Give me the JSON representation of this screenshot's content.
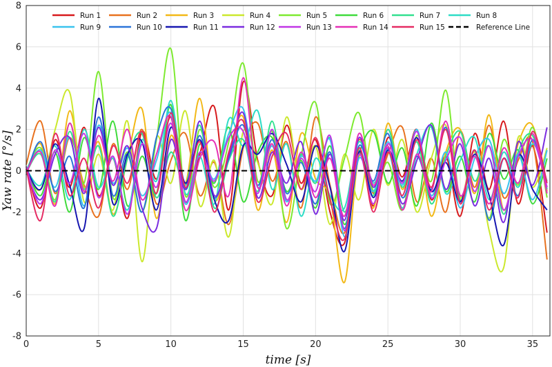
{
  "chart_data": {
    "type": "line",
    "title": "",
    "xlabel": "time [s]",
    "ylabel": "Yaw rate [°/s]",
    "xlim": [
      0,
      36.2
    ],
    "ylim": [
      -8,
      8
    ],
    "x_ticks": [
      0,
      5,
      10,
      15,
      20,
      25,
      30,
      35
    ],
    "y_ticks": [
      -8,
      -6,
      -4,
      -2,
      0,
      2,
      4,
      6,
      8
    ],
    "x_tick_labels": [
      "0",
      "5",
      "10",
      "15",
      "20",
      "25",
      "30",
      "35"
    ],
    "y_tick_labels": [
      "-8",
      "-6",
      "-4",
      "-2",
      "0",
      "2",
      "4",
      "6",
      "8"
    ],
    "grid": true,
    "legend_position": "top",
    "sample_x": [
      0,
      1,
      2,
      3,
      4,
      5,
      6,
      7,
      8,
      9,
      10,
      11,
      12,
      13,
      14,
      15,
      16,
      17,
      18,
      19,
      20,
      21,
      22,
      23,
      24,
      25,
      26,
      27,
      28,
      29,
      30,
      31,
      32,
      33,
      34,
      35,
      36
    ],
    "series": [
      {
        "name": "Run 1",
        "color": "#d7191c",
        "values": [
          0.2,
          -1.8,
          1.5,
          -0.8,
          2.1,
          -1.2,
          0.6,
          -2.3,
          1.9,
          -0.4,
          2.6,
          -1.5,
          0.8,
          3.1,
          -1.9,
          4.3,
          0.5,
          -1.2,
          2.2,
          -0.6,
          1.5,
          -2.0,
          -3.5,
          0.9,
          -1.7,
          1.6,
          -0.3,
          2.0,
          -1.4,
          0.7,
          -2.2,
          1.8,
          -0.9,
          2.4,
          -1.6,
          1.2,
          -3.0
        ]
      },
      {
        "name": "Run 2",
        "color": "#e8711e",
        "values": [
          0.3,
          2.4,
          -1.1,
          1.6,
          -0.7,
          -2.2,
          1.3,
          -0.9,
          2.0,
          -1.6,
          0.5,
          1.8,
          -1.2,
          0.4,
          -2.6,
          1.1,
          2.3,
          -0.5,
          1.4,
          -1.8,
          2.6,
          -0.7,
          -3.0,
          1.5,
          -1.1,
          0.8,
          2.1,
          -1.5,
          0.6,
          -2.0,
          1.9,
          -0.8,
          2.2,
          -1.3,
          0.5,
          1.4,
          -4.3
        ]
      },
      {
        "name": "Run 3",
        "color": "#f2b816",
        "values": [
          -0.2,
          1.3,
          -1.6,
          2.9,
          -0.8,
          1.4,
          -2.1,
          0.6,
          3.0,
          -2.3,
          1.7,
          -0.6,
          3.5,
          -1.4,
          0.8,
          2.6,
          -1.9,
          1.0,
          -2.5,
          1.8,
          -0.4,
          -1.3,
          -5.4,
          0.7,
          -1.8,
          2.3,
          -0.9,
          1.6,
          -2.2,
          0.9,
          2.0,
          -1.1,
          2.7,
          -1.9,
          1.3,
          2.2,
          -1.0
        ]
      },
      {
        "name": "Run 4",
        "color": "#cbe82c",
        "values": [
          0.1,
          -0.9,
          2.0,
          3.8,
          -1.5,
          0.8,
          -1.9,
          2.4,
          -4.4,
          1.6,
          -0.6,
          2.9,
          -1.7,
          0.5,
          -3.2,
          1.9,
          0.4,
          -1.6,
          2.6,
          -0.9,
          1.2,
          -2.6,
          0.8,
          -1.4,
          2.0,
          -0.7,
          1.5,
          -2.0,
          0.6,
          2.2,
          -1.3,
          0.9,
          -2.9,
          -4.7,
          1.6,
          -0.8,
          1.1
        ]
      },
      {
        "name": "Run 5",
        "color": "#7dea2f",
        "values": [
          0.0,
          1.1,
          -1.4,
          2.3,
          -0.6,
          4.8,
          -1.3,
          0.9,
          -2.0,
          1.5,
          5.9,
          -1.2,
          2.0,
          -0.8,
          1.4,
          5.2,
          -0.5,
          1.9,
          -2.8,
          0.7,
          3.3,
          -1.6,
          0.6,
          2.8,
          -1.0,
          0.4,
          -1.9,
          1.7,
          -0.5,
          3.9,
          -1.4,
          1.0,
          -2.3,
          1.5,
          -0.7,
          2.1,
          -1.3
        ]
      },
      {
        "name": "Run 6",
        "color": "#3fdb3b",
        "values": [
          0.2,
          -1.2,
          0.9,
          -2.0,
          1.6,
          -0.9,
          2.4,
          -1.7,
          0.7,
          -1.1,
          3.2,
          -2.4,
          1.3,
          -0.6,
          2.1,
          -1.5,
          0.9,
          1.6,
          -1.0,
          0.5,
          -1.8,
          1.2,
          -2.6,
          0.8,
          1.9,
          -0.6,
          1.1,
          -1.7,
          2.3,
          -1.0,
          0.7,
          -1.5,
          1.8,
          -0.4,
          1.0,
          -1.6,
          0.6
        ]
      },
      {
        "name": "Run 7",
        "color": "#31e08f",
        "values": [
          -0.1,
          0.8,
          -1.5,
          1.9,
          -0.9,
          1.2,
          -2.2,
          0.6,
          1.8,
          -1.3,
          0.9,
          -0.7,
          2.2,
          -1.8,
          0.5,
          1.5,
          -1.0,
          2.4,
          -1.4,
          0.8,
          -0.6,
          1.6,
          -2.0,
          1.0,
          -1.2,
          2.0,
          -0.8,
          1.4,
          -1.6,
          0.7,
          1.9,
          -0.5,
          1.2,
          -2.1,
          0.9,
          1.7,
          -0.9
        ]
      },
      {
        "name": "Run 8",
        "color": "#2ddcc6",
        "values": [
          0.1,
          -0.7,
          1.2,
          -1.4,
          2.0,
          -0.8,
          0.6,
          -1.9,
          1.5,
          -0.5,
          3.4,
          -1.1,
          0.7,
          -1.6,
          2.5,
          1.2,
          2.9,
          -0.9,
          1.3,
          -2.2,
          0.6,
          -1.2,
          -1.8,
          1.4,
          -0.6,
          1.0,
          -1.8,
          0.8,
          2.1,
          -1.1,
          0.5,
          1.6,
          -1.4,
          0.9,
          -0.8,
          1.3,
          -0.5
        ]
      },
      {
        "name": "Run 9",
        "color": "#38c2ee",
        "values": [
          0.0,
          1.0,
          -0.8,
          1.6,
          -1.7,
          2.2,
          -0.6,
          1.1,
          -1.2,
          0.5,
          2.8,
          -1.6,
          0.9,
          -0.4,
          1.8,
          3.0,
          -0.8,
          1.2,
          -1.5,
          0.7,
          -0.5,
          1.5,
          -3.2,
          0.6,
          -1.0,
          1.4,
          -0.7,
          2.0,
          -1.2,
          0.9,
          -1.8,
          0.6,
          1.5,
          -1.1,
          0.8,
          -1.4,
          1.0
        ]
      },
      {
        "name": "Run 10",
        "color": "#2a74d9",
        "values": [
          -0.2,
          1.4,
          -1.0,
          0.7,
          -1.8,
          2.6,
          -1.2,
          0.8,
          -2.0,
          1.6,
          3.0,
          -0.9,
          1.7,
          -1.3,
          0.6,
          2.2,
          -0.7,
          1.5,
          -1.1,
          0.4,
          -1.6,
          0.9,
          -2.8,
          1.2,
          -0.5,
          1.8,
          -1.3,
          0.7,
          -0.9,
          2.1,
          -1.5,
          1.0,
          -2.4,
          0.6,
          -1.2,
          1.5,
          -0.8
        ]
      },
      {
        "name": "Run 11",
        "color": "#1616b0",
        "values": [
          0.1,
          -0.9,
          1.3,
          -0.7,
          -2.8,
          3.5,
          -1.6,
          0.8,
          1.4,
          -1.9,
          2.1,
          -0.6,
          1.5,
          -1.4,
          -2.4,
          1.2,
          0.8,
          1.8,
          0.3,
          -1.5,
          1.2,
          -0.8,
          -3.9,
          0.9,
          -1.3,
          1.0,
          -0.5,
          1.6,
          -1.0,
          0.4,
          -1.5,
          0.8,
          -1.2,
          -3.6,
          0.7,
          -0.9,
          -1.9
        ]
      },
      {
        "name": "Run 12",
        "color": "#7a2be0",
        "values": [
          0.0,
          -1.4,
          0.8,
          1.6,
          -1.1,
          2.1,
          -0.7,
          1.2,
          -1.8,
          -2.8,
          1.5,
          -0.9,
          2.4,
          -1.2,
          0.7,
          2.8,
          -1.3,
          0.9,
          -0.6,
          1.4,
          -2.1,
          0.8,
          -2.4,
          1.6,
          -0.8,
          1.1,
          -1.6,
          0.5,
          2.2,
          -0.9,
          1.3,
          -1.7,
          0.6,
          -2.5,
          1.4,
          -0.7,
          2.1
        ]
      },
      {
        "name": "Run 13",
        "color": "#c035e6",
        "values": [
          0.2,
          -1.6,
          1.0,
          -0.6,
          1.8,
          -1.3,
          0.7,
          -2.1,
          1.3,
          -0.8,
          2.3,
          -1.5,
          0.9,
          -0.5,
          1.6,
          1.9,
          -1.1,
          2.0,
          -1.4,
          0.6,
          -1.0,
          1.7,
          -2.9,
          0.8,
          -1.6,
          1.3,
          -0.6,
          1.9,
          -1.3,
          0.5,
          1.6,
          -1.0,
          1.2,
          -1.9,
          0.7,
          1.5,
          -0.8
        ]
      },
      {
        "name": "Run 14",
        "color": "#e52fb6",
        "values": [
          -0.1,
          0.9,
          -1.7,
          2.3,
          -1.0,
          1.7,
          -0.5,
          2.0,
          -1.4,
          0.8,
          2.6,
          -1.9,
          0.6,
          1.4,
          -1.2,
          4.5,
          -0.8,
          1.3,
          -1.7,
          0.9,
          -1.3,
          0.6,
          -2.2,
          1.8,
          -0.7,
          1.2,
          -1.9,
          0.8,
          -1.0,
          2.4,
          -1.2,
          0.7,
          -1.6,
          1.1,
          -0.6,
          1.8,
          -1.1
        ]
      },
      {
        "name": "Run 15",
        "color": "#e52a62",
        "values": [
          0.1,
          -2.4,
          1.8,
          -1.2,
          0.6,
          -1.8,
          1.2,
          -0.6,
          1.9,
          -1.1,
          2.8,
          -0.8,
          1.4,
          -2.0,
          0.9,
          2.4,
          -1.5,
          0.7,
          1.8,
          -0.9,
          1.6,
          -1.4,
          -3.3,
          1.1,
          -2.0,
          0.9,
          -1.2,
          1.5,
          -0.8,
          2.0,
          -1.6,
          1.0,
          -1.9,
          0.6,
          -1.3,
          1.9,
          -0.6
        ]
      },
      {
        "name": "Reference Line",
        "color": "#000000",
        "dashed": true,
        "values": [
          0,
          0,
          0,
          0,
          0,
          0,
          0,
          0,
          0,
          0,
          0,
          0,
          0,
          0,
          0,
          0,
          0,
          0,
          0,
          0,
          0,
          0,
          0,
          0,
          0,
          0,
          0,
          0,
          0,
          0,
          0,
          0,
          0,
          0,
          0,
          0,
          0
        ]
      }
    ]
  }
}
